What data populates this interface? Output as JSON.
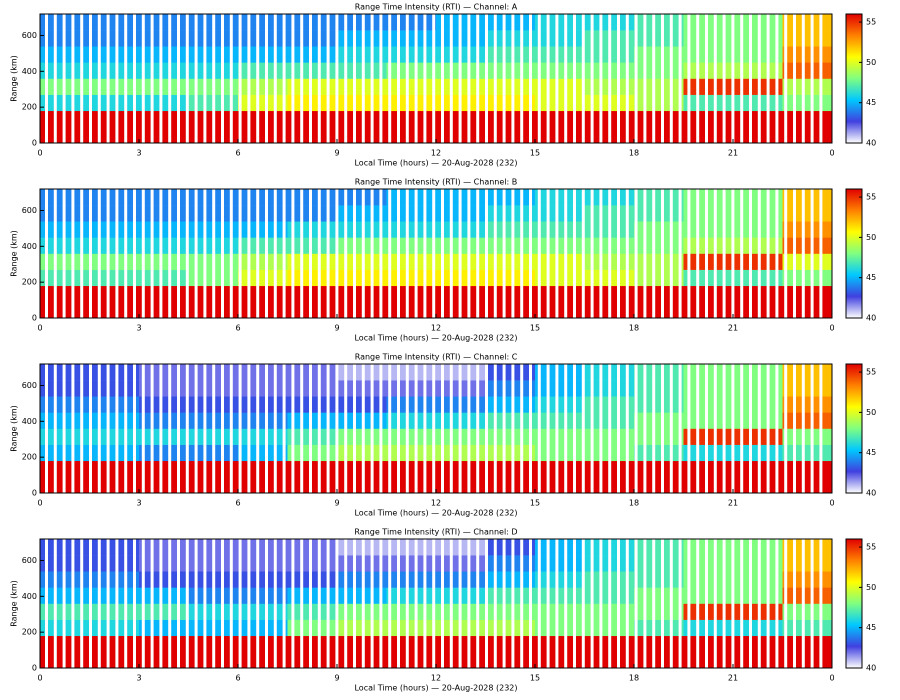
{
  "chart_data": [
    {
      "type": "heatmap",
      "title": "Range Time Intensity (RTI) — Channel: A",
      "xlabel": "Local Time (hours) — 20-Aug-2028 (232)",
      "ylabel": "Range (km)",
      "x_bins": [
        0,
        1.5,
        3,
        4.5,
        6,
        7.5,
        9,
        10.5,
        12,
        13.5,
        15,
        16.5,
        18,
        19.5,
        21,
        22.5,
        24
      ],
      "y_bins": [
        0,
        90,
        180,
        270,
        360,
        450,
        540,
        630,
        720
      ],
      "values": [
        [
          56,
          56,
          56,
          56,
          56,
          56,
          56,
          56,
          56,
          56,
          56,
          56,
          56,
          56,
          56,
          56
        ],
        [
          56,
          56,
          56,
          56,
          56,
          56,
          56,
          56,
          56,
          56,
          56,
          56,
          56,
          56,
          56,
          56
        ],
        [
          46,
          46,
          46,
          47,
          50,
          51,
          51,
          51,
          51,
          51,
          50,
          50,
          49,
          47,
          47,
          48
        ],
        [
          48,
          48,
          48,
          48,
          49,
          50,
          50,
          50,
          50,
          50,
          50,
          49,
          49,
          55,
          55,
          49
        ],
        [
          46,
          46,
          46,
          46,
          47,
          47,
          47,
          48,
          48,
          48,
          48,
          48,
          48,
          49,
          49,
          54
        ],
        [
          45,
          45,
          45,
          45,
          45,
          45,
          46,
          46,
          46,
          47,
          47,
          47,
          48,
          48,
          48,
          53
        ],
        [
          44,
          44,
          44,
          44,
          44,
          44,
          45,
          45,
          45,
          46,
          46,
          47,
          47,
          48,
          48,
          52
        ],
        [
          44,
          44,
          44,
          44,
          44,
          44,
          44,
          44,
          45,
          45,
          46,
          46,
          47,
          48,
          48,
          52
        ]
      ],
      "xlim": [
        0,
        24
      ],
      "ylim": [
        0,
        720
      ],
      "xticks": [
        0,
        3,
        6,
        9,
        12,
        15,
        18,
        21,
        {
          "value": 24,
          "label": "0"
        }
      ],
      "yticks": [
        0,
        200,
        400,
        600
      ],
      "zlim": [
        40,
        56
      ],
      "zticks": [
        40,
        45,
        50,
        55
      ],
      "colormap": [
        "#ffffff",
        "#4040e0",
        "#00c8ff",
        "#80ff80",
        "#ffff00",
        "#ff8000",
        "#e00000"
      ]
    },
    {
      "type": "heatmap",
      "title": "Range Time Intensity (RTI) — Channel: B",
      "xlabel": "Local Time (hours) — 20-Aug-2028 (232)",
      "ylabel": "Range (km)",
      "x_bins": [
        0,
        1.5,
        3,
        4.5,
        6,
        7.5,
        9,
        10.5,
        12,
        13.5,
        15,
        16.5,
        18,
        19.5,
        21,
        22.5,
        24
      ],
      "y_bins": [
        0,
        90,
        180,
        270,
        360,
        450,
        540,
        630,
        720
      ],
      "values": [
        [
          56,
          56,
          56,
          56,
          56,
          56,
          56,
          56,
          56,
          56,
          56,
          56,
          56,
          56,
          56,
          56
        ],
        [
          56,
          56,
          56,
          56,
          56,
          56,
          56,
          56,
          56,
          56,
          56,
          56,
          56,
          56,
          56,
          56
        ],
        [
          47,
          47,
          47,
          48,
          50,
          51,
          51,
          51,
          51,
          51,
          50,
          50,
          49,
          47,
          47,
          48
        ],
        [
          48,
          48,
          48,
          48,
          49,
          50,
          50,
          50,
          50,
          50,
          50,
          49,
          49,
          55,
          55,
          50
        ],
        [
          46,
          46,
          46,
          46,
          47,
          47,
          48,
          48,
          48,
          48,
          48,
          48,
          48,
          49,
          49,
          54
        ],
        [
          45,
          45,
          45,
          45,
          45,
          46,
          46,
          46,
          46,
          47,
          47,
          47,
          48,
          48,
          48,
          53
        ],
        [
          44,
          44,
          44,
          44,
          44,
          44,
          45,
          45,
          45,
          46,
          46,
          47,
          47,
          48,
          48,
          52
        ],
        [
          44,
          44,
          44,
          44,
          44,
          44,
          44,
          45,
          45,
          45,
          46,
          46,
          47,
          48,
          48,
          52
        ]
      ],
      "xlim": [
        0,
        24
      ],
      "ylim": [
        0,
        720
      ],
      "xticks": [
        0,
        3,
        6,
        9,
        12,
        15,
        18,
        21,
        {
          "value": 24,
          "label": "0"
        }
      ],
      "yticks": [
        0,
        200,
        400,
        600
      ],
      "zlim": [
        40,
        56
      ],
      "zticks": [
        40,
        45,
        50,
        55
      ],
      "colormap": [
        "#ffffff",
        "#4040e0",
        "#00c8ff",
        "#80ff80",
        "#ffff00",
        "#ff8000",
        "#e00000"
      ]
    },
    {
      "type": "heatmap",
      "title": "Range Time Intensity (RTI) — Channel: C",
      "xlabel": "Local Time (hours) — 20-Aug-2028 (232)",
      "ylabel": "Range (km)",
      "x_bins": [
        0,
        1.5,
        3,
        4.5,
        6,
        7.5,
        9,
        10.5,
        12,
        13.5,
        15,
        16.5,
        18,
        19.5,
        21,
        22.5,
        24
      ],
      "y_bins": [
        0,
        90,
        180,
        270,
        360,
        450,
        540,
        630,
        720
      ],
      "values": [
        [
          56,
          56,
          56,
          56,
          56,
          56,
          56,
          56,
          56,
          56,
          56,
          56,
          56,
          56,
          56,
          56
        ],
        [
          56,
          56,
          56,
          56,
          56,
          56,
          56,
          56,
          56,
          56,
          56,
          56,
          56,
          56,
          56,
          56
        ],
        [
          45,
          45,
          44,
          44,
          45,
          48,
          49,
          49,
          49,
          49,
          48,
          48,
          47,
          46,
          46,
          47
        ],
        [
          46,
          46,
          46,
          46,
          46,
          47,
          48,
          48,
          48,
          48,
          48,
          48,
          48,
          55,
          55,
          48
        ],
        [
          45,
          45,
          44,
          44,
          44,
          45,
          45,
          46,
          46,
          47,
          47,
          47,
          48,
          48,
          48,
          54
        ],
        [
          44,
          44,
          43,
          43,
          43,
          43,
          43,
          44,
          44,
          45,
          46,
          47,
          47,
          48,
          48,
          53
        ],
        [
          43,
          43,
          42,
          42,
          42,
          42,
          42,
          42,
          42,
          44,
          45,
          46,
          47,
          48,
          48,
          52
        ],
        [
          43,
          43,
          42,
          42,
          42,
          42,
          41,
          41,
          41,
          43,
          45,
          46,
          47,
          48,
          48,
          52
        ]
      ],
      "xlim": [
        0,
        24
      ],
      "ylim": [
        0,
        720
      ],
      "xticks": [
        0,
        3,
        6,
        9,
        12,
        15,
        18,
        21,
        {
          "value": 24,
          "label": "0"
        }
      ],
      "yticks": [
        0,
        200,
        400,
        600
      ],
      "zlim": [
        40,
        56
      ],
      "zticks": [
        40,
        45,
        50,
        55
      ],
      "colormap": [
        "#ffffff",
        "#4040e0",
        "#00c8ff",
        "#80ff80",
        "#ffff00",
        "#ff8000",
        "#e00000"
      ]
    },
    {
      "type": "heatmap",
      "title": "Range Time Intensity (RTI) — Channel: D",
      "xlabel": "Local Time (hours) — 20-Aug-2028 (232)",
      "ylabel": "Range (km)",
      "x_bins": [
        0,
        1.5,
        3,
        4.5,
        6,
        7.5,
        9,
        10.5,
        12,
        13.5,
        15,
        16.5,
        18,
        19.5,
        21,
        22.5,
        24
      ],
      "y_bins": [
        0,
        90,
        180,
        270,
        360,
        450,
        540,
        630,
        720
      ],
      "values": [
        [
          56,
          56,
          56,
          56,
          56,
          56,
          56,
          56,
          56,
          56,
          56,
          56,
          56,
          56,
          56,
          56
        ],
        [
          56,
          56,
          56,
          56,
          56,
          56,
          56,
          56,
          56,
          56,
          56,
          56,
          56,
          56,
          56,
          56
        ],
        [
          46,
          46,
          45,
          45,
          45,
          48,
          49,
          49,
          49,
          49,
          48,
          48,
          47,
          46,
          46,
          47
        ],
        [
          47,
          47,
          47,
          46,
          46,
          47,
          48,
          48,
          48,
          48,
          48,
          48,
          48,
          55,
          55,
          48
        ],
        [
          45,
          45,
          45,
          44,
          44,
          45,
          45,
          46,
          46,
          47,
          47,
          47,
          48,
          48,
          48,
          54
        ],
        [
          44,
          44,
          43,
          43,
          43,
          43,
          44,
          44,
          44,
          45,
          46,
          47,
          47,
          48,
          48,
          53
        ],
        [
          43,
          43,
          42,
          42,
          42,
          42,
          42,
          42,
          42,
          44,
          45,
          46,
          47,
          48,
          48,
          52
        ],
        [
          43,
          43,
          42,
          42,
          42,
          42,
          41,
          41,
          41,
          43,
          45,
          46,
          47,
          48,
          48,
          52
        ]
      ],
      "xlim": [
        0,
        24
      ],
      "ylim": [
        0,
        720
      ],
      "xticks": [
        0,
        3,
        6,
        9,
        12,
        15,
        18,
        21,
        {
          "value": 24,
          "label": "0"
        }
      ],
      "yticks": [
        0,
        200,
        400,
        600
      ],
      "zlim": [
        40,
        56
      ],
      "zticks": [
        40,
        45,
        50,
        55
      ],
      "colormap": [
        "#ffffff",
        "#4040e0",
        "#00c8ff",
        "#80ff80",
        "#ffff00",
        "#ff8000",
        "#e00000"
      ]
    }
  ]
}
